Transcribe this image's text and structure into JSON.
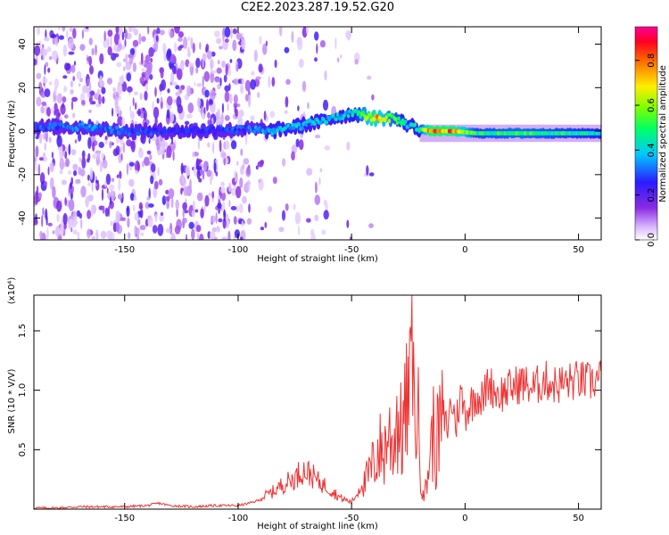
{
  "title": "C2E2.2023.287.19.52.G20",
  "colors": {
    "snr_line": "#ee3333",
    "axes": "#000000"
  },
  "chart_data": [
    {
      "type": "heatmap",
      "title": "C2E2.2023.287.19.52.G20",
      "xlabel": "Height of straight line (km)",
      "ylabel": "Frequency (Hz)",
      "xlim": [
        -190,
        60
      ],
      "ylim": [
        -50,
        48
      ],
      "x_ticks": [
        -150,
        -100,
        -50,
        0,
        50
      ],
      "y_ticks": [
        -40,
        -20,
        0,
        20,
        40
      ],
      "x_tick_labels": [
        "-150",
        "-100",
        "-50",
        "0",
        "50"
      ],
      "y_tick_labels": [
        "-40",
        "-20",
        "0",
        "20",
        "40"
      ],
      "colormap": "rainbow (white-purple-blue-cyan-green-yellow-red-pink)",
      "colorbar": {
        "label": "Normalized spectral amplitude",
        "range": [
          0,
          0.95
        ],
        "ticks": [
          0.0,
          0.2,
          0.4,
          0.6,
          0.8
        ],
        "tick_labels": [
          "0.0",
          "0.2",
          "0.4",
          "0.6",
          "0.8"
        ]
      },
      "ridge": [
        {
          "x": -185,
          "y": 2,
          "amp": 0.35
        },
        {
          "x": -170,
          "y": 2,
          "amp": 0.38
        },
        {
          "x": -150,
          "y": 0,
          "amp": 0.35
        },
        {
          "x": -130,
          "y": 0,
          "amp": 0.3
        },
        {
          "x": -110,
          "y": 0,
          "amp": 0.3
        },
        {
          "x": -95,
          "y": 1,
          "amp": 0.35
        },
        {
          "x": -85,
          "y": 0,
          "amp": 0.45
        },
        {
          "x": -75,
          "y": 2,
          "amp": 0.45
        },
        {
          "x": -65,
          "y": 4,
          "amp": 0.45
        },
        {
          "x": -55,
          "y": 7,
          "amp": 0.45
        },
        {
          "x": -48,
          "y": 8,
          "amp": 0.5
        },
        {
          "x": -40,
          "y": 6,
          "amp": 0.85
        },
        {
          "x": -32,
          "y": 6,
          "amp": 0.6
        },
        {
          "x": -25,
          "y": 3,
          "amp": 0.45
        },
        {
          "x": -20,
          "y": 1,
          "amp": 0.5
        },
        {
          "x": -15,
          "y": 0,
          "amp": 0.95
        },
        {
          "x": -5,
          "y": 0,
          "amp": 0.9
        },
        {
          "x": 5,
          "y": -1,
          "amp": 0.55
        },
        {
          "x": 25,
          "y": -1,
          "amp": 0.6
        },
        {
          "x": 60,
          "y": -1,
          "amp": 0.5
        }
      ]
    },
    {
      "type": "line",
      "xlabel": "Height of straight line (km)",
      "ylabel": "SNR (10 * V/V)",
      "y_scale_note": "(x10⁴)",
      "xlim": [
        -190,
        60
      ],
      "ylim": [
        0,
        1.8
      ],
      "x_ticks": [
        -150,
        -100,
        -50,
        0,
        50
      ],
      "y_ticks": [
        0.5,
        1.0,
        1.5
      ],
      "x_tick_labels": [
        "-150",
        "-100",
        "-50",
        "0",
        "50"
      ],
      "y_tick_labels": [
        "0.5",
        "1.0",
        "1.5"
      ],
      "series": [
        {
          "x": [
            -190,
            -180,
            -170,
            -160,
            -150,
            -140,
            -135,
            -130,
            -120,
            -110,
            -100,
            -95,
            -90,
            -85,
            -80,
            -75,
            -72,
            -68,
            -65,
            -60,
            -55,
            -50,
            -48,
            -45,
            -42,
            -40,
            -38,
            -36,
            -34,
            -32,
            -30,
            -28,
            -26,
            -24,
            -23.5,
            -23,
            -22,
            -21,
            -20,
            -19,
            -18,
            -17,
            -16,
            -15,
            -14,
            -13,
            -12,
            -10,
            -8,
            -6,
            -4,
            -2,
            0,
            2,
            5,
            8,
            10,
            15,
            20,
            25,
            30,
            35,
            40,
            45,
            50,
            55,
            60
          ],
          "y": [
            0.01,
            0.01,
            0.02,
            0.02,
            0.02,
            0.03,
            0.05,
            0.03,
            0.02,
            0.03,
            0.03,
            0.05,
            0.08,
            0.12,
            0.18,
            0.22,
            0.28,
            0.25,
            0.2,
            0.15,
            0.08,
            0.05,
            0.1,
            0.2,
            0.35,
            0.45,
            0.6,
            0.5,
            0.75,
            0.6,
            0.9,
            0.7,
            0.95,
            1.1,
            1.8,
            1.2,
            0.8,
            1.05,
            0.5,
            0.3,
            0.15,
            0.2,
            0.45,
            0.6,
            0.75,
            0.5,
            0.7,
            0.85,
            0.7,
            0.95,
            0.75,
            1.0,
            0.85,
            0.9,
            1.0,
            0.95,
            1.1,
            1.0,
            1.05,
            1.1,
            1.05,
            1.12,
            1.08,
            1.1,
            1.12,
            1.1,
            1.14
          ]
        }
      ]
    }
  ]
}
